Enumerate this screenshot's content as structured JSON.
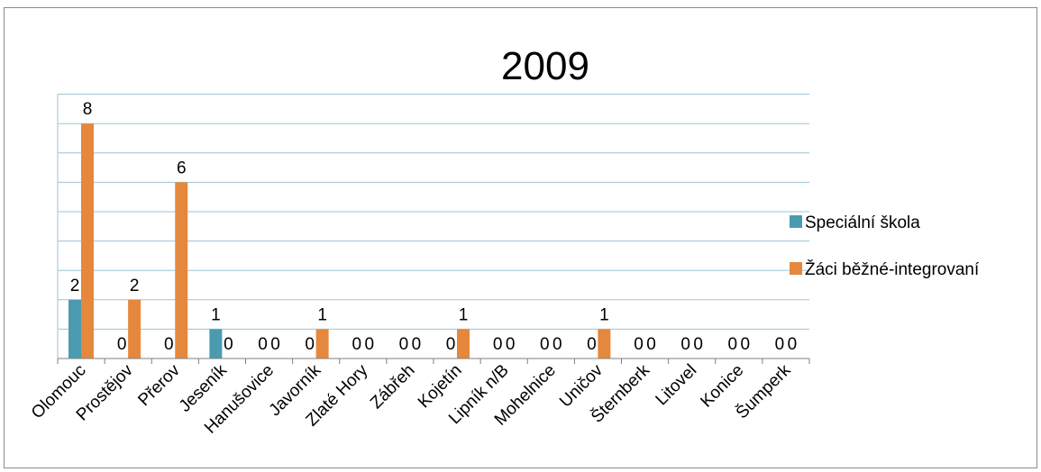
{
  "chart_data": {
    "type": "bar",
    "title": "2009",
    "xlabel": "",
    "ylabel": "",
    "ylim": [
      0,
      9
    ],
    "grid": true,
    "legend_position": "right",
    "categories": [
      "Olomouc",
      "Prostějov",
      "Přerov",
      "Jeseník",
      "Hanušovice",
      "Javorník",
      "Zlaté Hory",
      "Zábřeh",
      "Kojetín",
      "Lipník n/B",
      "Mohelnice",
      "Uničov",
      "Šternberk",
      "Litovel",
      "Konice",
      "Šumperk"
    ],
    "series": [
      {
        "name": "Speciální škola",
        "color": "#4a9bb0",
        "values": [
          2,
          0,
          0,
          1,
          0,
          0,
          0,
          0,
          0,
          0,
          0,
          0,
          0,
          0,
          0,
          0
        ]
      },
      {
        "name": "Žáci běžné-integrovaní",
        "color": "#e5883d",
        "values": [
          8,
          2,
          6,
          0,
          0,
          1,
          0,
          0,
          1,
          0,
          0,
          1,
          0,
          0,
          0,
          0
        ]
      }
    ]
  }
}
